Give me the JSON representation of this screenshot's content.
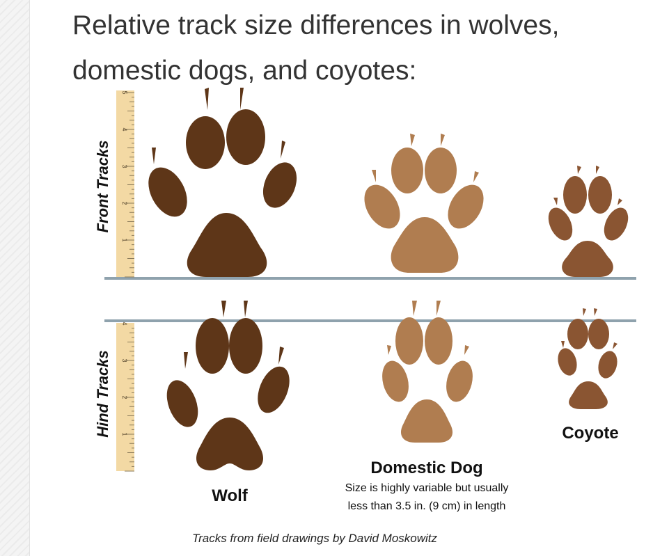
{
  "heading": {
    "line1": "Relative track size differences in wolves,",
    "line2": "domestic dogs, and coyotes:"
  },
  "figure": {
    "row_labels": {
      "front": "Front Tracks",
      "hind": "Hind Tracks"
    },
    "ruler_ticks_front": [
      "1",
      "2",
      "3",
      "4",
      "5"
    ],
    "ruler_ticks_hind": [
      "1",
      "2",
      "3",
      "4"
    ],
    "animals": {
      "wolf": {
        "name": "Wolf",
        "color": "#5e3618"
      },
      "dog": {
        "name": "Domestic Dog",
        "note_line1": "Size is highly variable but usually",
        "note_line2": "less than 3.5 in. (9 cm) in length",
        "color": "#b07d50"
      },
      "coyote": {
        "name": "Coyote",
        "color": "#8a5532"
      }
    },
    "ground_line_color": "#8fa2ad",
    "ruler_color": "#f3d9a4",
    "credit": "Tracks from field drawings by David Moskowitz"
  }
}
